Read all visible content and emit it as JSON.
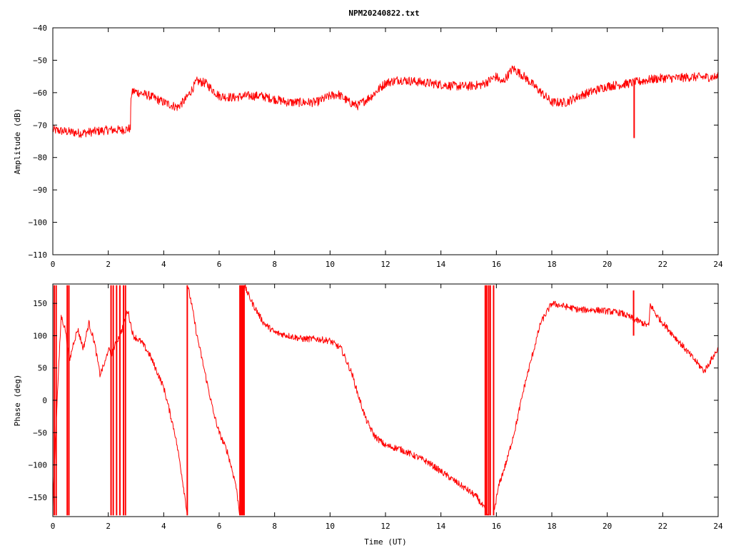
{
  "title": "NPM20240822.txt",
  "colors": {
    "series": "#ff0000",
    "axes": "#000000",
    "background": "#ffffff"
  },
  "chart_data": [
    {
      "type": "line",
      "title": "NPM20240822.txt",
      "xlabel": "",
      "ylabel": "Amplitude (dB)",
      "xlim": [
        0,
        24
      ],
      "ylim": [
        -110,
        -40
      ],
      "xticks": [
        0,
        2,
        4,
        6,
        8,
        10,
        12,
        14,
        16,
        18,
        20,
        22,
        24
      ],
      "yticks": [
        -110,
        -100,
        -90,
        -80,
        -70,
        -60,
        -50,
        -40
      ],
      "grid": false,
      "legend": "none",
      "series": [
        {
          "noise": 1.4,
          "points": [
            [
              0.0,
              -71.5
            ],
            [
              0.5,
              -72
            ],
            [
              1.0,
              -72.5
            ],
            [
              1.5,
              -72
            ],
            [
              2.0,
              -71.5
            ],
            [
              2.5,
              -71.5
            ],
            [
              2.8,
              -71
            ],
            [
              2.82,
              -61
            ],
            [
              2.9,
              -59.5
            ],
            [
              3.5,
              -61
            ],
            [
              4.0,
              -63
            ],
            [
              4.5,
              -64.5
            ],
            [
              4.8,
              -62
            ],
            [
              5.2,
              -56.5
            ],
            [
              5.5,
              -57
            ],
            [
              6.0,
              -61
            ],
            [
              6.5,
              -61.5
            ],
            [
              7.0,
              -61
            ],
            [
              7.5,
              -61
            ],
            [
              8.0,
              -62
            ],
            [
              8.5,
              -63
            ],
            [
              9.0,
              -63
            ],
            [
              9.5,
              -63
            ],
            [
              10.0,
              -61
            ],
            [
              10.3,
              -60.5
            ],
            [
              10.7,
              -63
            ],
            [
              11.0,
              -64
            ],
            [
              11.5,
              -61
            ],
            [
              12.0,
              -57
            ],
            [
              12.5,
              -56
            ],
            [
              13.0,
              -56.5
            ],
            [
              13.5,
              -57
            ],
            [
              14.0,
              -57.5
            ],
            [
              14.5,
              -58
            ],
            [
              15.0,
              -58
            ],
            [
              15.5,
              -57.5
            ],
            [
              15.8,
              -56
            ],
            [
              16.0,
              -55
            ],
            [
              16.2,
              -57
            ],
            [
              16.6,
              -52.5
            ],
            [
              17.0,
              -55
            ],
            [
              17.5,
              -59
            ],
            [
              18.0,
              -63
            ],
            [
              18.5,
              -63
            ],
            [
              19.0,
              -61
            ],
            [
              19.5,
              -59.5
            ],
            [
              20.0,
              -58
            ],
            [
              20.5,
              -57.5
            ],
            [
              20.9,
              -57
            ],
            [
              21.5,
              -56
            ],
            [
              22.0,
              -55.5
            ],
            [
              22.5,
              -55.5
            ],
            [
              23.0,
              -55.2
            ],
            [
              23.5,
              -55.2
            ],
            [
              24.0,
              -55.2
            ]
          ],
          "spikes": [
            {
              "x": 20.97,
              "from": -57,
              "to": -74
            }
          ]
        }
      ]
    },
    {
      "type": "line",
      "title": "",
      "xlabel": "Time (UT)",
      "ylabel": "Phase (deg)",
      "xlim": [
        0,
        24
      ],
      "ylim": [
        -180,
        180
      ],
      "xticks": [
        0,
        2,
        4,
        6,
        8,
        10,
        12,
        14,
        16,
        18,
        20,
        22,
        24
      ],
      "yticks": [
        -150,
        -100,
        -50,
        0,
        50,
        100,
        150
      ],
      "grid": false,
      "legend": "none",
      "series": [
        {
          "noise": 5,
          "segments": [
            [
              [
                0.0,
                -160
              ],
              [
                0.1,
                -50
              ],
              [
                0.2,
                40
              ],
              [
                0.3,
                130
              ],
              [
                0.45,
                110
              ],
              [
                0.6,
                60
              ],
              [
                0.75,
                90
              ],
              [
                0.9,
                110
              ],
              [
                1.1,
                80
              ],
              [
                1.3,
                120
              ],
              [
                1.5,
                90
              ],
              [
                1.7,
                40
              ],
              [
                1.9,
                60
              ],
              [
                2.0,
                80
              ],
              [
                2.1,
                70
              ],
              [
                2.3,
                90
              ],
              [
                2.5,
                110
              ],
              [
                2.7,
                140
              ],
              [
                2.9,
                100
              ],
              [
                3.2,
                90
              ],
              [
                3.5,
                70
              ],
              [
                3.8,
                40
              ],
              [
                4.0,
                20
              ],
              [
                4.2,
                -15
              ],
              [
                4.4,
                -50
              ],
              [
                4.6,
                -100
              ],
              [
                4.8,
                -160
              ],
              [
                4.85,
                -178
              ]
            ],
            [
              [
                4.86,
                178
              ],
              [
                5.0,
                150
              ],
              [
                5.2,
                100
              ],
              [
                5.5,
                40
              ],
              [
                5.8,
                -20
              ],
              [
                6.0,
                -50
              ],
              [
                6.3,
                -80
              ],
              [
                6.6,
                -130
              ],
              [
                6.75,
                -178
              ]
            ],
            [
              [
                6.9,
                178
              ],
              [
                7.2,
                150
              ],
              [
                7.6,
                120
              ],
              [
                8.0,
                105
              ],
              [
                8.5,
                100
              ],
              [
                9.0,
                95
              ],
              [
                9.5,
                95
              ],
              [
                10.0,
                92
              ],
              [
                10.4,
                80
              ],
              [
                10.8,
                40
              ],
              [
                11.0,
                10
              ],
              [
                11.3,
                -30
              ],
              [
                11.6,
                -55
              ],
              [
                12.0,
                -70
              ],
              [
                12.5,
                -75
              ],
              [
                13.0,
                -85
              ],
              [
                13.5,
                -95
              ],
              [
                14.0,
                -110
              ],
              [
                14.5,
                -125
              ],
              [
                15.0,
                -140
              ],
              [
                15.3,
                -150
              ],
              [
                15.6,
                -170
              ],
              [
                15.7,
                -178
              ]
            ],
            [
              [
                15.9,
                -175
              ],
              [
                16.1,
                -130
              ],
              [
                16.4,
                -90
              ],
              [
                16.7,
                -40
              ],
              [
                17.0,
                20
              ],
              [
                17.3,
                70
              ],
              [
                17.6,
                120
              ],
              [
                18.0,
                150
              ],
              [
                18.5,
                145
              ],
              [
                19.0,
                140
              ],
              [
                19.5,
                140
              ],
              [
                20.0,
                138
              ],
              [
                20.5,
                135
              ],
              [
                21.0,
                125
              ],
              [
                21.5,
                115
              ],
              [
                21.55,
                148
              ],
              [
                21.8,
                130
              ],
              [
                22.2,
                110
              ],
              [
                22.6,
                90
              ],
              [
                23.0,
                70
              ],
              [
                23.5,
                45
              ],
              [
                24.0,
                80
              ]
            ]
          ],
          "spikes": [
            {
              "x": 0.05,
              "from": -178,
              "to": 178
            },
            {
              "x": 0.12,
              "from": -178,
              "to": 178
            },
            {
              "x": 0.52,
              "from": -178,
              "to": 178
            },
            {
              "x": 0.58,
              "from": -178,
              "to": 178
            },
            {
              "x": 2.1,
              "from": -178,
              "to": 178
            },
            {
              "x": 2.18,
              "from": -178,
              "to": 178
            },
            {
              "x": 2.3,
              "from": -178,
              "to": 178
            },
            {
              "x": 2.42,
              "from": -178,
              "to": 178
            },
            {
              "x": 2.55,
              "from": -178,
              "to": 178
            },
            {
              "x": 2.62,
              "from": -178,
              "to": 178
            },
            {
              "x": 4.85,
              "from": -178,
              "to": 178
            },
            {
              "x": 6.75,
              "from": -178,
              "to": 178
            },
            {
              "x": 6.8,
              "from": -178,
              "to": 178
            },
            {
              "x": 6.85,
              "from": -178,
              "to": 178
            },
            {
              "x": 6.9,
              "from": -178,
              "to": 178
            },
            {
              "x": 15.6,
              "from": -178,
              "to": 178
            },
            {
              "x": 15.65,
              "from": -178,
              "to": 178
            },
            {
              "x": 15.72,
              "from": -178,
              "to": 178
            },
            {
              "x": 15.78,
              "from": -178,
              "to": 178
            },
            {
              "x": 15.9,
              "from": -178,
              "to": 178
            },
            {
              "x": 20.95,
              "from": 100,
              "to": 170
            }
          ]
        }
      ]
    }
  ]
}
